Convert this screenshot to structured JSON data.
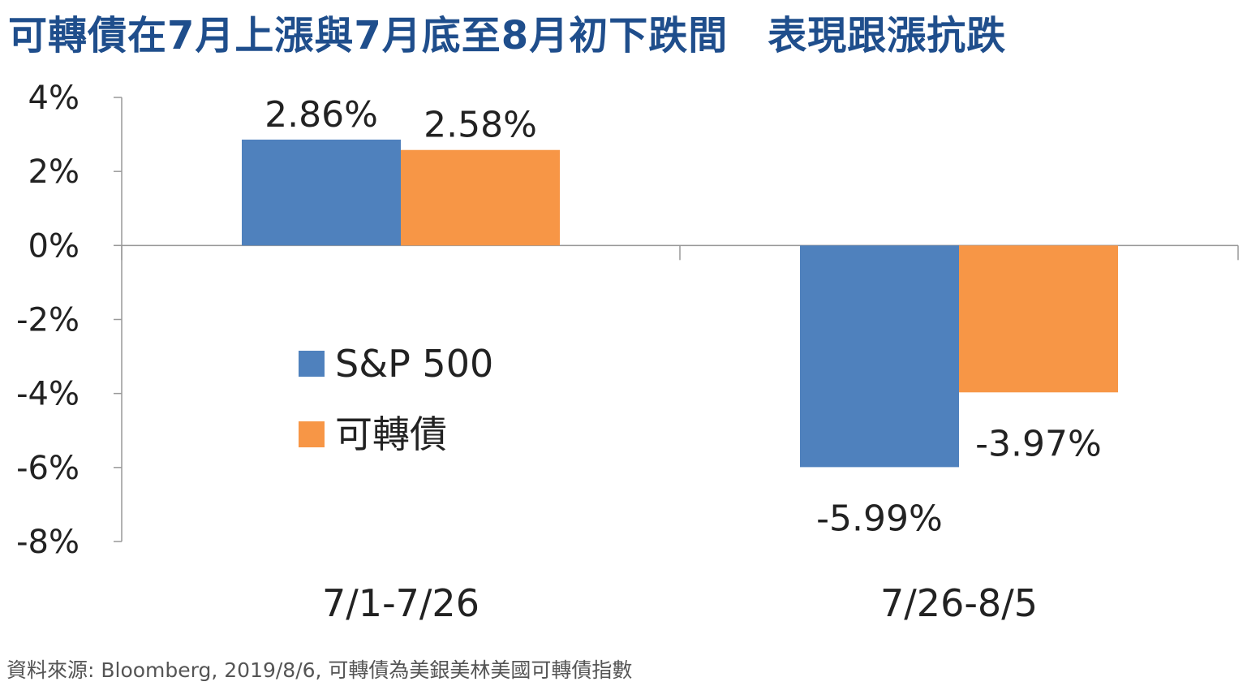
{
  "title": "可轉債在7月上漲與7月底至8月初下跌間　表現跟漲抗跌",
  "source_note": "資料來源: Bloomberg, 2019/8/6, 可轉債為美銀美林美國可轉債指數",
  "colors": {
    "title": "#1f4e8c",
    "series_sp500": "#4f81bd",
    "series_cb": "#f79646",
    "axis": "#999999"
  },
  "chart_data": {
    "type": "bar",
    "categories": [
      "7/1-7/26",
      "7/26-8/5"
    ],
    "series": [
      {
        "name": "S&P 500",
        "values": [
          2.86,
          -5.99
        ],
        "labels": [
          "2.86%",
          "-5.99%"
        ]
      },
      {
        "name": "可轉債",
        "values": [
          2.58,
          -3.97
        ],
        "labels": [
          "2.58%",
          "-3.97%"
        ]
      }
    ],
    "ylim": [
      -8,
      4
    ],
    "yticks": [
      4,
      2,
      0,
      -2,
      -4,
      -6,
      -8
    ],
    "ytick_labels": [
      "4%",
      "2%",
      "0%",
      "-2%",
      "-4%",
      "-6%",
      "-8%"
    ],
    "legend_position": "middle-left",
    "grid": false
  }
}
